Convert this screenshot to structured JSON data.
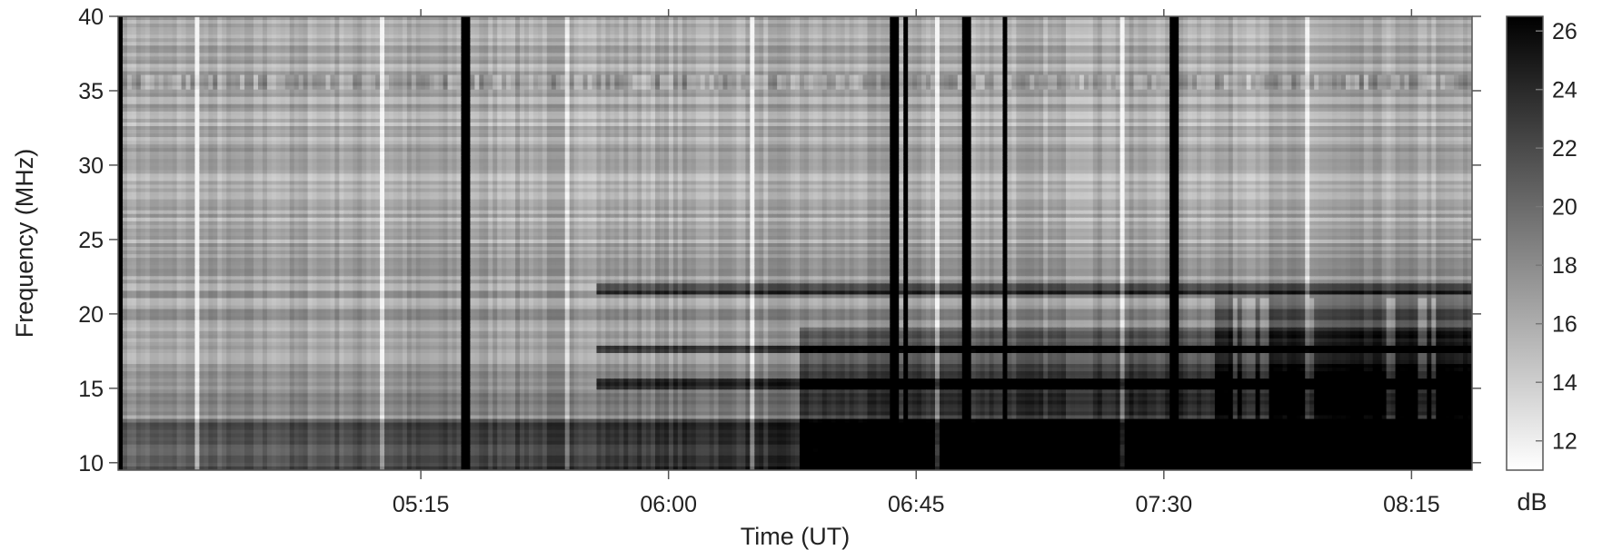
{
  "chart_data": {
    "type": "heatmap",
    "title": "",
    "xlabel": "Time (UT)",
    "ylabel": "Frequency (MHz)",
    "colorbar_label": "dB",
    "x_ticks": [
      "05:15",
      "06:00",
      "06:45",
      "07:30",
      "08:15"
    ],
    "x_range": [
      "04:20",
      "08:26"
    ],
    "y_ticks": [
      10,
      15,
      20,
      25,
      30,
      35,
      40
    ],
    "ylim": [
      9.5,
      40
    ],
    "colorbar_ticks": [
      12,
      14,
      16,
      18,
      20,
      22,
      24,
      26
    ],
    "colorbar_range": [
      11,
      26.5
    ],
    "colormap": {
      "low": "#ffffff",
      "high": "#000000"
    },
    "grid": false,
    "features": {
      "vertical_bursts_ut": [
        "04:20",
        "05:23",
        "06:41",
        "06:43",
        "06:54",
        "07:01",
        "07:32"
      ],
      "persistent_interference_mhz": 35.5,
      "horizontal_bands_mhz": [
        15.3,
        17.7,
        21.7
      ]
    }
  }
}
